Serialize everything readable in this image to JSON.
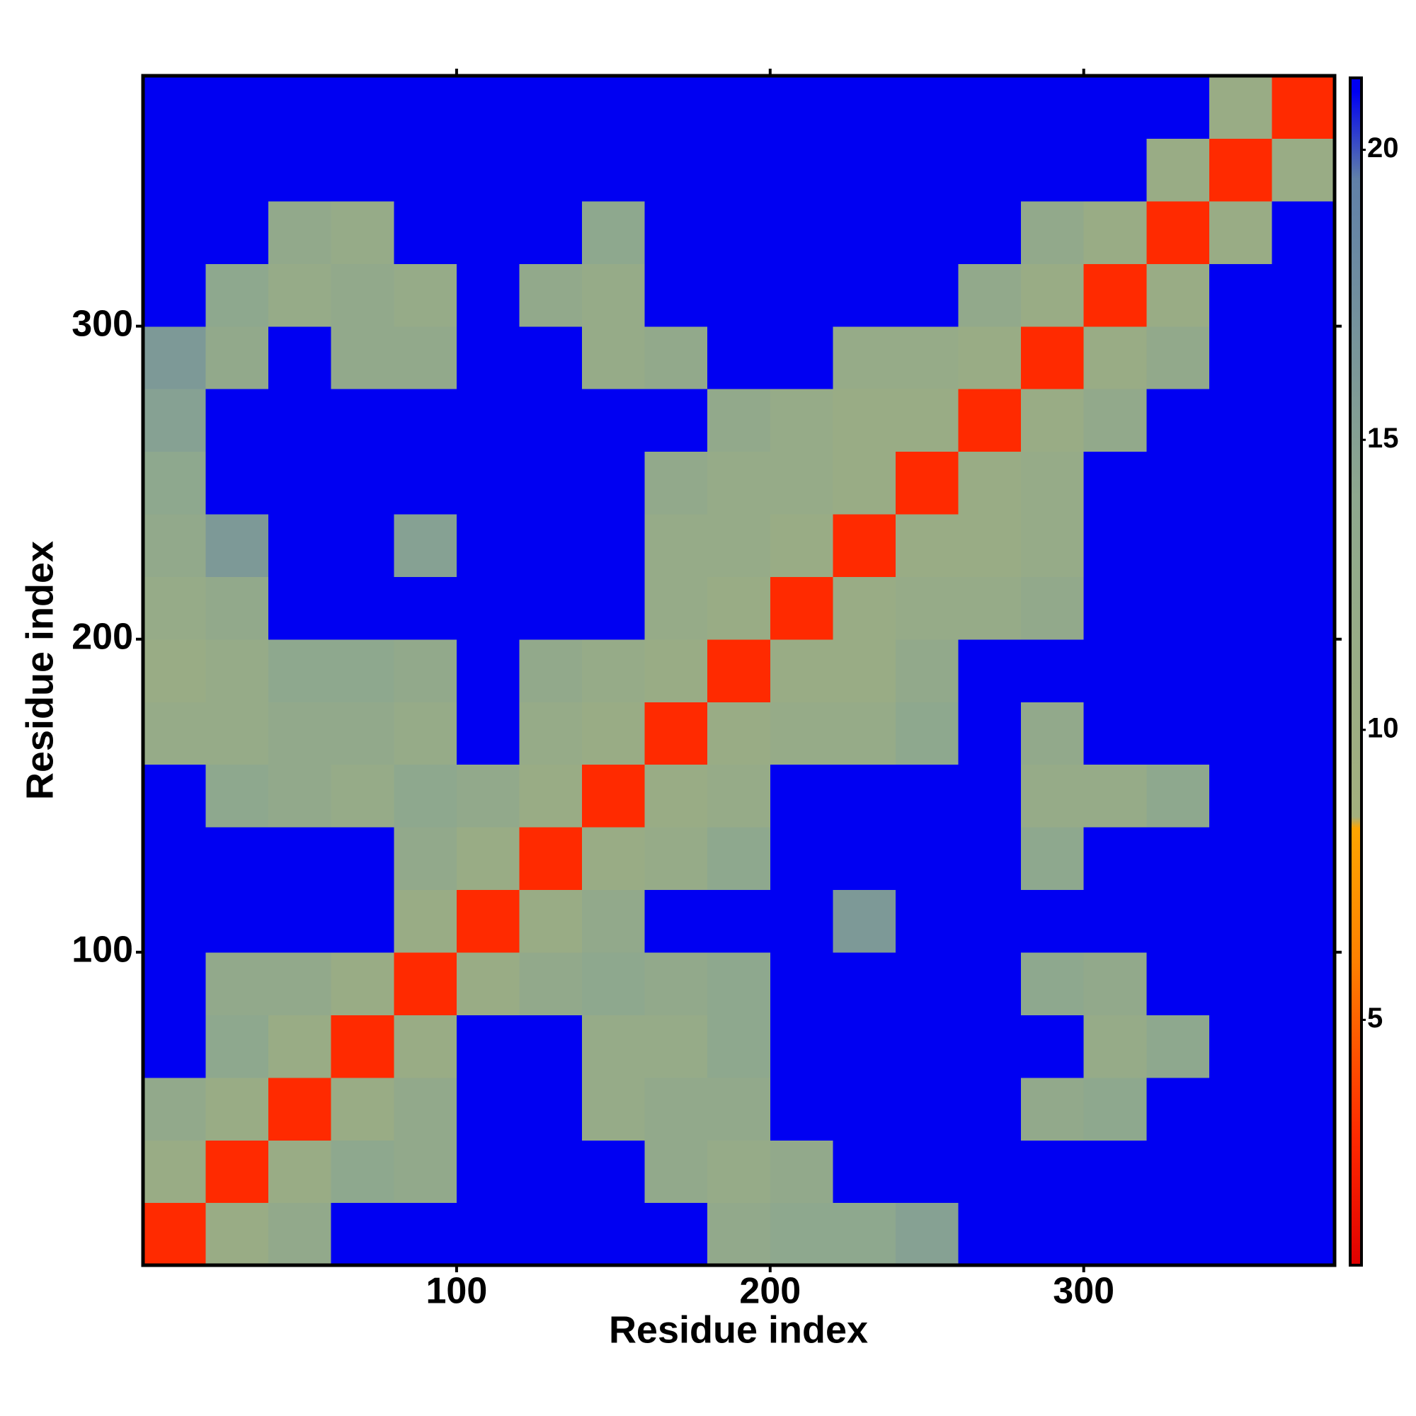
{
  "chart_data": {
    "type": "heatmap",
    "x_label": "Residue index",
    "y_label": "Residue index",
    "xbins": [
      0,
      20,
      40,
      60,
      80,
      100,
      120,
      140,
      160,
      180,
      200,
      220,
      240,
      260,
      280,
      300,
      320,
      340,
      360,
      380
    ],
    "ybins": [
      0,
      20,
      40,
      60,
      80,
      100,
      120,
      140,
      160,
      180,
      200,
      220,
      240,
      260,
      280,
      300,
      320,
      340,
      360,
      380
    ],
    "z": [
      [
        3,
        11,
        13,
        21,
        21,
        21,
        21,
        21,
        21,
        13,
        14,
        14,
        15,
        21,
        21,
        21,
        21,
        21,
        21
      ],
      [
        11,
        3,
        11,
        14,
        13,
        21,
        21,
        21,
        13,
        12,
        13,
        21,
        21,
        21,
        21,
        21,
        21,
        21,
        21
      ],
      [
        13,
        11,
        3,
        11,
        13,
        21,
        21,
        12,
        13,
        13,
        21,
        21,
        21,
        21,
        13,
        14,
        21,
        21,
        21
      ],
      [
        21,
        14,
        11,
        3,
        11,
        21,
        21,
        12,
        12,
        14,
        21,
        21,
        21,
        21,
        21,
        12,
        14,
        21,
        21
      ],
      [
        21,
        13,
        13,
        11,
        3,
        11,
        13,
        14,
        13,
        14,
        21,
        21,
        21,
        21,
        14,
        13,
        21,
        21,
        21
      ],
      [
        21,
        21,
        21,
        21,
        11,
        3,
        11,
        13,
        21,
        21,
        21,
        16,
        21,
        21,
        21,
        21,
        21,
        21,
        21
      ],
      [
        21,
        21,
        21,
        21,
        13,
        11,
        3,
        11,
        12,
        14,
        21,
        21,
        21,
        21,
        14,
        21,
        21,
        21,
        21
      ],
      [
        21,
        14,
        13,
        12,
        14,
        13,
        11,
        3,
        11,
        12,
        21,
        21,
        21,
        21,
        12,
        12,
        14,
        21,
        21
      ],
      [
        12,
        12,
        13,
        13,
        12,
        21,
        12,
        11,
        3,
        11,
        12,
        12,
        14,
        21,
        13,
        21,
        21,
        21,
        21
      ],
      [
        11,
        12,
        14,
        14,
        13,
        21,
        13,
        12,
        11,
        3,
        11,
        11,
        13,
        21,
        21,
        21,
        21,
        21,
        21
      ],
      [
        12,
        13,
        21,
        21,
        21,
        21,
        21,
        21,
        12,
        11,
        3,
        11,
        12,
        12,
        13,
        21,
        21,
        21,
        21
      ],
      [
        13,
        16,
        21,
        21,
        15,
        21,
        21,
        21,
        12,
        12,
        11,
        3,
        11,
        11,
        12,
        21,
        21,
        21,
        21
      ],
      [
        14,
        21,
        21,
        21,
        21,
        21,
        21,
        21,
        13,
        12,
        12,
        11,
        3,
        11,
        12,
        21,
        21,
        21,
        21
      ],
      [
        15,
        21,
        21,
        21,
        21,
        21,
        21,
        21,
        21,
        13,
        12,
        11,
        11,
        3,
        11,
        13,
        21,
        21,
        21
      ],
      [
        16,
        13,
        21,
        13,
        13,
        21,
        21,
        12,
        13,
        21,
        21,
        12,
        12,
        11,
        3,
        11,
        13,
        21,
        21
      ],
      [
        21,
        14,
        12,
        13,
        12,
        21,
        13,
        12,
        21,
        21,
        21,
        21,
        21,
        13,
        11,
        3,
        11,
        21,
        21
      ],
      [
        21,
        21,
        13,
        12,
        21,
        21,
        21,
        14,
        21,
        21,
        21,
        21,
        21,
        21,
        13,
        11,
        3,
        11,
        21
      ],
      [
        21,
        21,
        21,
        21,
        21,
        21,
        21,
        21,
        21,
        21,
        21,
        21,
        21,
        21,
        21,
        21,
        11,
        3,
        11
      ],
      [
        21,
        21,
        21,
        21,
        21,
        21,
        21,
        21,
        21,
        21,
        21,
        21,
        21,
        21,
        21,
        21,
        21,
        11,
        3
      ]
    ],
    "xlim": [
      0,
      380
    ],
    "ylim": [
      0,
      380
    ],
    "xticks": [
      100,
      200,
      300
    ],
    "yticks": [
      100,
      200,
      300
    ],
    "zlim": [
      0.77,
      21.24
    ],
    "zticks": [
      5,
      10,
      15,
      20
    ],
    "colorscale": [
      [
        0.77,
        "#e00000"
      ],
      [
        3,
        "#ff2a00"
      ],
      [
        6,
        "#ff8000"
      ],
      [
        8.3,
        "#ffa500"
      ],
      [
        8.5,
        "#a3b07e"
      ],
      [
        14,
        "#8ea88e"
      ],
      [
        19.5,
        "#6080a8"
      ],
      [
        21,
        "#0000f2"
      ]
    ]
  }
}
